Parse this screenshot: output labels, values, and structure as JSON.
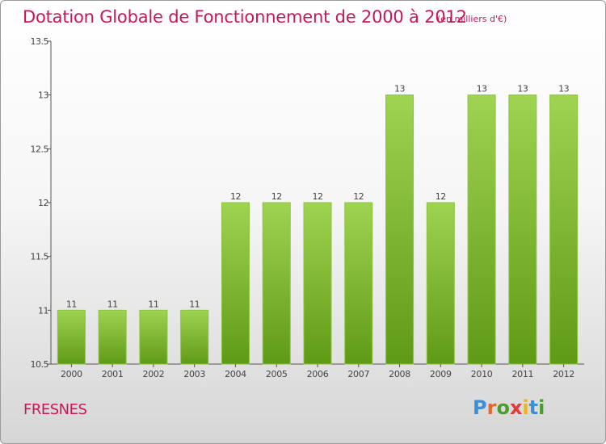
{
  "title": "Dotation Globale de Fonctionnement de 2000 à 2012",
  "subtitle": "(en milliers d'€)",
  "commune": "FRESNES",
  "logo": {
    "text": "Proxiti",
    "letters": [
      "P",
      "r",
      "o",
      "x",
      "i",
      "t",
      "i"
    ],
    "colors": [
      "#3a8fd6",
      "#e8662a",
      "#4a9e2c",
      "#e23a3a",
      "#f2b21c",
      "#3a8fd6",
      "#4a9e2c"
    ]
  },
  "colors": {
    "title": "#c7165b",
    "bar_top": "#9fd352",
    "bar_bottom": "#5f9a16",
    "axis": "#555555"
  },
  "chart_data": {
    "type": "bar",
    "categories": [
      "2000",
      "2001",
      "2002",
      "2003",
      "2004",
      "2005",
      "2006",
      "2007",
      "2008",
      "2009",
      "2010",
      "2011",
      "2012"
    ],
    "values": [
      11,
      11,
      11,
      11,
      12,
      12,
      12,
      12,
      13,
      12,
      13,
      13,
      13
    ],
    "data_labels": [
      "11",
      "11",
      "11",
      "11",
      "12",
      "12",
      "12",
      "12",
      "13",
      "12",
      "13",
      "13",
      "13"
    ],
    "yticks": [
      10.5,
      11,
      11.5,
      12,
      12.5,
      13,
      13.5
    ],
    "ytick_labels": [
      "10.5",
      "11",
      "11.5",
      "12",
      "12.5",
      "13",
      "13.5"
    ],
    "ylim": [
      10.5,
      13.5
    ],
    "grid": false,
    "legend": "none"
  }
}
